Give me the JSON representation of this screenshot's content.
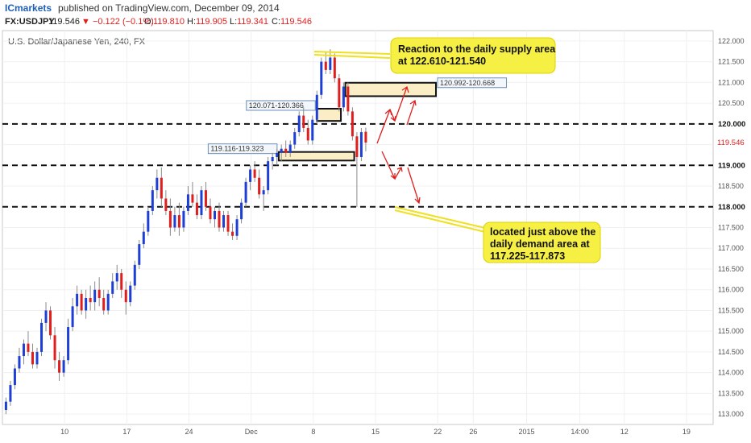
{
  "header": {
    "brand": "ICmarkets",
    "published": "published on TradingView.com, December 09, 2014"
  },
  "quote": {
    "symbol": "FX:USDJPY",
    "last": "119.546",
    "change": "▼ −0.122 (−0.1%)",
    "o_label": "O:",
    "o": "119.810",
    "h_label": "H:",
    "h": "119.905",
    "l_label": "L:",
    "l": "119.341",
    "c_label": "C:",
    "c": "119.546"
  },
  "colors": {
    "bull": "#1e3fd6",
    "bear": "#e01e1e",
    "accent": "#e01e1e",
    "callout": "#f7f044",
    "zone": "#fbeec7"
  },
  "chart_data": {
    "type": "candlestick",
    "title": "U.S. Dollar/Japanese Yen, 240, FX",
    "ylim": [
      112.75,
      122.25
    ],
    "y_ticks": [
      "113.000",
      "113.500",
      "114.000",
      "114.500",
      "115.000",
      "115.500",
      "116.000",
      "116.500",
      "117.000",
      "117.500",
      "118.000",
      "118.500",
      "119.000",
      "119.500",
      "120.000",
      "120.500",
      "121.000",
      "121.500",
      "122.000"
    ],
    "x_ticks": [
      "10",
      "17",
      "24",
      "Dec",
      "8",
      "15",
      "22",
      "26",
      "2015",
      "14:00",
      "12",
      "19"
    ],
    "x_tick_days": [
      10,
      17,
      24,
      31,
      38,
      45,
      52,
      56,
      62,
      68,
      73,
      80
    ],
    "x_range_days": [
      3,
      83
    ],
    "candles": [
      [
        3.4,
        113.1,
        113.4,
        113.0,
        113.3
      ],
      [
        3.9,
        113.3,
        113.8,
        113.2,
        113.7
      ],
      [
        4.4,
        113.7,
        114.2,
        113.6,
        114.1
      ],
      [
        4.9,
        114.1,
        114.6,
        114.0,
        114.4
      ],
      [
        5.4,
        114.4,
        114.8,
        114.2,
        114.7
      ],
      [
        5.9,
        114.7,
        115.0,
        114.4,
        114.5
      ],
      [
        6.4,
        114.5,
        114.7,
        114.1,
        114.2
      ],
      [
        6.9,
        114.2,
        114.6,
        114.1,
        114.5
      ],
      [
        7.4,
        114.5,
        115.3,
        114.4,
        115.2
      ],
      [
        7.9,
        115.2,
        115.7,
        115.0,
        115.5
      ],
      [
        8.4,
        115.5,
        115.6,
        114.8,
        114.9
      ],
      [
        8.9,
        114.9,
        115.1,
        114.1,
        114.3
      ],
      [
        9.4,
        114.3,
        114.5,
        113.8,
        114.0
      ],
      [
        9.9,
        114.0,
        114.4,
        113.9,
        114.3
      ],
      [
        10.4,
        114.3,
        115.3,
        114.2,
        115.1
      ],
      [
        10.9,
        115.1,
        115.8,
        115.0,
        115.6
      ],
      [
        11.4,
        115.6,
        116.1,
        115.4,
        115.9
      ],
      [
        11.9,
        115.9,
        116.0,
        115.4,
        115.5
      ],
      [
        12.4,
        115.5,
        116.0,
        115.3,
        115.8
      ],
      [
        12.9,
        115.8,
        116.1,
        115.5,
        115.7
      ],
      [
        13.4,
        115.7,
        116.2,
        115.5,
        116.0
      ],
      [
        13.9,
        116.0,
        116.3,
        115.6,
        115.8
      ],
      [
        14.4,
        115.8,
        116.0,
        115.4,
        115.5
      ],
      [
        14.9,
        115.5,
        116.0,
        115.4,
        115.9
      ],
      [
        15.4,
        115.9,
        116.4,
        115.8,
        116.2
      ],
      [
        15.9,
        116.2,
        116.6,
        116.0,
        116.4
      ],
      [
        16.4,
        116.4,
        116.5,
        115.8,
        116.0
      ],
      [
        16.9,
        116.0,
        116.2,
        115.4,
        115.7
      ],
      [
        17.4,
        115.7,
        116.2,
        115.6,
        116.1
      ],
      [
        17.9,
        116.1,
        116.7,
        116.0,
        116.6
      ],
      [
        18.4,
        116.6,
        117.2,
        116.5,
        117.1
      ],
      [
        18.9,
        117.1,
        117.6,
        117.0,
        117.4
      ],
      [
        19.4,
        117.4,
        118.0,
        117.3,
        117.9
      ],
      [
        19.9,
        117.9,
        118.5,
        117.8,
        118.4
      ],
      [
        20.4,
        118.4,
        118.9,
        118.2,
        118.7
      ],
      [
        20.9,
        118.7,
        118.95,
        118.0,
        118.2
      ],
      [
        21.4,
        118.2,
        118.4,
        117.8,
        117.9
      ],
      [
        21.9,
        117.9,
        118.2,
        117.3,
        117.5
      ],
      [
        22.4,
        117.5,
        118.0,
        117.4,
        117.8
      ],
      [
        22.9,
        117.8,
        118.1,
        117.3,
        117.5
      ],
      [
        23.4,
        117.5,
        118.0,
        117.4,
        117.9
      ],
      [
        23.9,
        117.9,
        118.5,
        117.8,
        118.3
      ],
      [
        24.4,
        118.3,
        118.6,
        118.0,
        118.1
      ],
      [
        24.9,
        118.1,
        118.3,
        117.7,
        117.8
      ],
      [
        25.4,
        117.8,
        118.5,
        117.7,
        118.4
      ],
      [
        25.9,
        118.4,
        118.6,
        117.9,
        118.0
      ],
      [
        26.4,
        118.0,
        118.2,
        117.6,
        117.7
      ],
      [
        26.9,
        117.7,
        118.0,
        117.5,
        117.9
      ],
      [
        27.4,
        117.9,
        118.1,
        117.4,
        117.5
      ],
      [
        27.9,
        117.5,
        117.9,
        117.4,
        117.8
      ],
      [
        28.4,
        117.8,
        117.9,
        117.3,
        117.4
      ],
      [
        28.9,
        117.4,
        117.6,
        117.2,
        117.3
      ],
      [
        29.4,
        117.3,
        117.8,
        117.2,
        117.7
      ],
      [
        29.9,
        117.7,
        118.2,
        117.6,
        118.1
      ],
      [
        30.4,
        118.1,
        118.7,
        118.0,
        118.6
      ],
      [
        30.9,
        118.6,
        119.0,
        118.4,
        118.9
      ],
      [
        31.4,
        118.9,
        119.1,
        118.6,
        118.7
      ],
      [
        31.9,
        118.7,
        118.9,
        118.2,
        118.3
      ],
      [
        32.4,
        118.3,
        118.5,
        117.9,
        118.4
      ],
      [
        32.9,
        118.4,
        119.2,
        118.3,
        119.1
      ],
      [
        33.4,
        119.1,
        119.3,
        118.9,
        119.2
      ],
      [
        33.9,
        119.2,
        119.4,
        119.0,
        119.3
      ],
      [
        34.4,
        119.3,
        119.5,
        119.1,
        119.4
      ],
      [
        34.9,
        119.4,
        119.6,
        119.2,
        119.3
      ],
      [
        35.4,
        119.3,
        119.6,
        119.2,
        119.5
      ],
      [
        35.9,
        119.5,
        119.9,
        119.4,
        119.8
      ],
      [
        36.4,
        119.8,
        120.3,
        119.7,
        120.2
      ],
      [
        36.9,
        120.2,
        120.4,
        119.8,
        119.9
      ],
      [
        37.4,
        119.9,
        120.1,
        119.5,
        119.6
      ],
      [
        37.9,
        119.6,
        120.2,
        119.5,
        120.1
      ],
      [
        38.4,
        120.1,
        120.8,
        120.0,
        120.7
      ],
      [
        38.9,
        120.7,
        121.6,
        120.6,
        121.5
      ],
      [
        39.4,
        121.5,
        121.75,
        121.2,
        121.3
      ],
      [
        39.9,
        121.3,
        121.8,
        121.2,
        121.6
      ],
      [
        40.4,
        121.6,
        121.7,
        121.0,
        121.1
      ],
      [
        40.9,
        121.1,
        121.2,
        120.3,
        120.4
      ],
      [
        41.4,
        120.4,
        121.0,
        120.3,
        120.9
      ],
      [
        41.9,
        120.9,
        121.0,
        120.2,
        120.3
      ],
      [
        42.4,
        120.3,
        120.4,
        119.6,
        119.7
      ],
      [
        42.9,
        119.7,
        119.8,
        118.0,
        119.2
      ],
      [
        43.4,
        119.2,
        119.9,
        119.1,
        119.8
      ],
      [
        43.9,
        119.81,
        119.91,
        119.34,
        119.55
      ]
    ],
    "price_lines": [
      {
        "value": 120.0,
        "label": "120.000"
      },
      {
        "value": 119.0,
        "label": "119.000"
      },
      {
        "value": 118.0,
        "label": "118.000"
      }
    ],
    "current_price": "119.546",
    "zones": [
      {
        "label": "120.992-120.668",
        "day_start": 41.6,
        "day_end": 51.8,
        "top": 120.992,
        "bottom": 120.668
      },
      {
        "label": "120.071-120.366",
        "day_start": 38.4,
        "day_end": 41.1,
        "top": 120.366,
        "bottom": 120.071
      },
      {
        "label": "119.116-119.323",
        "day_start": 34.1,
        "day_end": 42.6,
        "top": 119.323,
        "bottom": 119.116
      }
    ],
    "annotations": [
      {
        "text": "Reaction to the daily supply area\nat 122.610-121.540"
      },
      {
        "text": "located just above the\ndaily demand area at\n117.225-117.873"
      }
    ]
  }
}
